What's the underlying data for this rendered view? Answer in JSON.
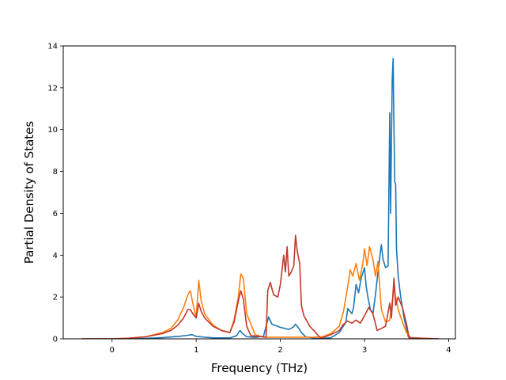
{
  "chart_data": {
    "type": "line",
    "title": "",
    "xlabel": "Frequency (THz)",
    "ylabel": "Partial Density of States",
    "xlim": [
      -0.58,
      4.08
    ],
    "ylim": [
      0,
      14
    ],
    "xticks": [
      0,
      1,
      2,
      3,
      4
    ],
    "yticks": [
      0,
      2,
      4,
      6,
      8,
      10,
      12,
      14
    ],
    "grid": false,
    "legend": "none",
    "series": [
      {
        "color": "#1f77b4",
        "x": [
          -0.36,
          0.0,
          0.4,
          0.6,
          0.8,
          0.9,
          0.95,
          1.0,
          1.05,
          1.1,
          1.2,
          1.4,
          1.48,
          1.52,
          1.55,
          1.6,
          1.7,
          1.8,
          1.83,
          1.86,
          1.9,
          2.0,
          2.1,
          2.15,
          2.18,
          2.22,
          2.25,
          2.3,
          2.45,
          2.6,
          2.7,
          2.78,
          2.8,
          2.83,
          2.85,
          2.87,
          2.9,
          2.93,
          2.96,
          3.0,
          3.02,
          3.04,
          3.07,
          3.1,
          3.13,
          3.16,
          3.2,
          3.22,
          3.25,
          3.28,
          3.3,
          3.31,
          3.32,
          3.33,
          3.34,
          3.35,
          3.36,
          3.37,
          3.38,
          3.4,
          3.43,
          3.47,
          3.52,
          3.55,
          3.6,
          3.88
        ],
        "y": [
          0,
          0,
          0.02,
          0.06,
          0.12,
          0.17,
          0.2,
          0.12,
          0.1,
          0.08,
          0.05,
          0.04,
          0.15,
          0.4,
          0.25,
          0.1,
          0.07,
          0.12,
          0.6,
          1.05,
          0.7,
          0.55,
          0.45,
          0.55,
          0.7,
          0.5,
          0.3,
          0.1,
          0.01,
          0.05,
          0.3,
          0.8,
          1.45,
          1.3,
          1.2,
          1.5,
          2.6,
          2.2,
          2.9,
          3.4,
          2.5,
          2.0,
          1.4,
          1.2,
          2.1,
          3.2,
          4.5,
          3.8,
          3.4,
          3.5,
          10.8,
          6.0,
          9.5,
          12.5,
          13.4,
          10.0,
          7.5,
          7.4,
          4.3,
          3.0,
          2.0,
          1.0,
          0.1,
          0,
          0,
          0
        ]
      },
      {
        "color": "#ff7f0e",
        "x": [
          -0.36,
          0.0,
          0.2,
          0.4,
          0.6,
          0.7,
          0.78,
          0.85,
          0.9,
          0.93,
          0.96,
          1.0,
          1.03,
          1.06,
          1.1,
          1.2,
          1.3,
          1.4,
          1.45,
          1.5,
          1.53,
          1.56,
          1.6,
          1.7,
          1.8,
          2.4,
          2.5,
          2.6,
          2.7,
          2.75,
          2.8,
          2.83,
          2.86,
          2.9,
          2.94,
          2.98,
          3.0,
          3.03,
          3.06,
          3.1,
          3.13,
          3.16,
          3.2,
          3.25,
          3.3,
          3.35,
          3.4,
          3.45,
          3.5,
          3.55,
          3.88
        ],
        "y": [
          0,
          0,
          0.03,
          0.1,
          0.3,
          0.5,
          0.9,
          1.5,
          2.1,
          2.3,
          1.7,
          1.0,
          2.8,
          1.8,
          1.2,
          0.65,
          0.4,
          0.3,
          0.9,
          2.0,
          3.1,
          2.9,
          1.2,
          0.2,
          0.08,
          0.08,
          0.1,
          0.25,
          0.6,
          1.3,
          2.5,
          3.3,
          3.0,
          3.6,
          2.8,
          3.6,
          4.3,
          3.5,
          4.4,
          3.8,
          3.0,
          3.7,
          1.4,
          0.8,
          0.9,
          2.4,
          1.4,
          0.8,
          0.3,
          0.05,
          0
        ]
      },
      {
        "color": "#c0392b",
        "x": [
          -0.36,
          0.0,
          0.2,
          0.4,
          0.6,
          0.7,
          0.78,
          0.85,
          0.9,
          0.93,
          0.96,
          1.0,
          1.03,
          1.06,
          1.1,
          1.2,
          1.3,
          1.4,
          1.45,
          1.5,
          1.53,
          1.56,
          1.6,
          1.65,
          1.83,
          1.85,
          1.88,
          1.92,
          1.97,
          2.0,
          2.02,
          2.04,
          2.06,
          2.08,
          2.1,
          2.13,
          2.16,
          2.18,
          2.2,
          2.23,
          2.25,
          2.28,
          2.35,
          2.42,
          2.47,
          2.5,
          2.6,
          2.7,
          2.75,
          2.8,
          2.85,
          2.9,
          2.95,
          3.0,
          3.05,
          3.1,
          3.15,
          3.2,
          3.25,
          3.3,
          3.32,
          3.35,
          3.37,
          3.4,
          3.45,
          3.5,
          3.53,
          3.88
        ],
        "y": [
          0,
          0,
          0.03,
          0.1,
          0.25,
          0.4,
          0.65,
          1.0,
          1.4,
          1.4,
          1.2,
          1.0,
          1.7,
          1.3,
          1.0,
          0.6,
          0.4,
          0.3,
          0.8,
          1.8,
          2.3,
          1.9,
          0.6,
          0.15,
          0.08,
          2.3,
          2.7,
          2.1,
          2.0,
          2.6,
          3.3,
          4.0,
          3.2,
          4.4,
          3.0,
          3.2,
          3.5,
          4.95,
          4.2,
          3.6,
          1.6,
          1.1,
          0.6,
          0.3,
          0.05,
          0.05,
          0.2,
          0.4,
          0.7,
          0.85,
          0.75,
          0.9,
          0.75,
          1.1,
          1.5,
          1.2,
          0.4,
          0.5,
          0.6,
          1.7,
          1.0,
          2.9,
          1.6,
          2.0,
          1.5,
          0.7,
          0.05,
          0
        ]
      }
    ]
  }
}
